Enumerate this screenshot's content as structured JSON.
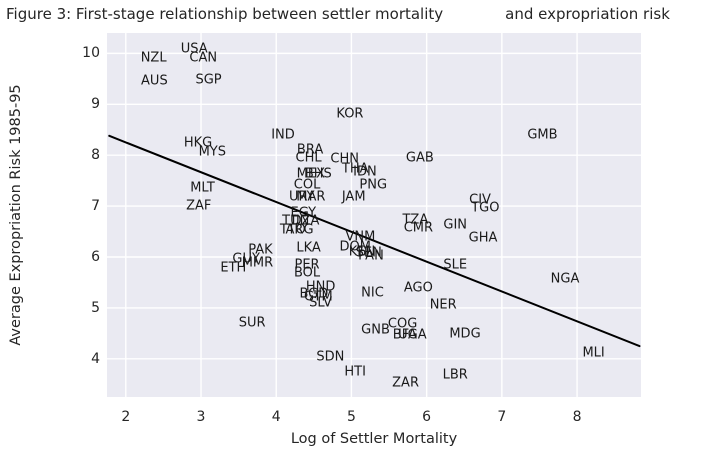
{
  "title": "Figure 3: First-stage relationship between settler mortality             and expropriation risk",
  "chart_data": {
    "type": "scatter",
    "marker_style": "country-code-text-labels",
    "xlabel": "Log of Settler Mortality",
    "ylabel": "Average Expropriation Risk 1985-95",
    "xlim": [
      1.75,
      8.85
    ],
    "ylim": [
      3.25,
      10.4
    ],
    "xticks": [
      2,
      3,
      4,
      5,
      6,
      7,
      8
    ],
    "yticks": [
      4,
      5,
      6,
      7,
      8,
      9,
      10
    ],
    "grid": true,
    "legend": "none",
    "style": {
      "plot_background": "#eaeaf2",
      "grid_color": "#ffffff",
      "figure_background": "#ffffff",
      "text_color": "#262626",
      "point_label_color": "#1a1a1a",
      "line_color": "#000000"
    },
    "regression_line": {
      "x": [
        1.78,
        8.83
      ],
      "y": [
        8.38,
        4.25
      ]
    },
    "points": [
      {
        "label": "USA",
        "x": 2.91,
        "y": 10.08
      },
      {
        "label": "NZL",
        "x": 2.37,
        "y": 9.9
      },
      {
        "label": "CAN",
        "x": 3.03,
        "y": 9.9
      },
      {
        "label": "AUS",
        "x": 2.38,
        "y": 9.45
      },
      {
        "label": "SGP",
        "x": 3.1,
        "y": 9.47
      },
      {
        "label": "KOR",
        "x": 4.98,
        "y": 8.8
      },
      {
        "label": "IND",
        "x": 4.09,
        "y": 8.39
      },
      {
        "label": "HKG",
        "x": 2.96,
        "y": 8.24
      },
      {
        "label": "MYS",
        "x": 3.15,
        "y": 8.06
      },
      {
        "label": "GMB",
        "x": 7.54,
        "y": 8.39
      },
      {
        "label": "BRA",
        "x": 4.45,
        "y": 8.1
      },
      {
        "label": "CHL",
        "x": 4.43,
        "y": 7.94
      },
      {
        "label": "CHN",
        "x": 4.91,
        "y": 7.92
      },
      {
        "label": "GAB",
        "x": 5.91,
        "y": 7.94
      },
      {
        "label": "THA",
        "x": 5.05,
        "y": 7.72
      },
      {
        "label": "IDN",
        "x": 5.18,
        "y": 7.66
      },
      {
        "label": "MEX",
        "x": 4.46,
        "y": 7.64
      },
      {
        "label": "BHS",
        "x": 4.56,
        "y": 7.64
      },
      {
        "label": "COL",
        "x": 4.41,
        "y": 7.41
      },
      {
        "label": "PNG",
        "x": 5.29,
        "y": 7.41
      },
      {
        "label": "MLT",
        "x": 3.02,
        "y": 7.36
      },
      {
        "label": "URY",
        "x": 4.34,
        "y": 7.17
      },
      {
        "label": "MAR",
        "x": 4.46,
        "y": 7.17
      },
      {
        "label": "JAM",
        "x": 5.03,
        "y": 7.17
      },
      {
        "label": "CIV",
        "x": 6.71,
        "y": 7.12
      },
      {
        "label": "ZAF",
        "x": 2.97,
        "y": 7.0
      },
      {
        "label": "TGO",
        "x": 6.78,
        "y": 6.97
      },
      {
        "label": "EGY",
        "x": 4.36,
        "y": 6.86
      },
      {
        "label": "TZA",
        "x": 5.85,
        "y": 6.73
      },
      {
        "label": "TUN",
        "x": 4.26,
        "y": 6.7
      },
      {
        "label": "DZA",
        "x": 4.39,
        "y": 6.7
      },
      {
        "label": "GIN",
        "x": 6.38,
        "y": 6.63
      },
      {
        "label": "CMR",
        "x": 5.89,
        "y": 6.57
      },
      {
        "label": "TTO",
        "x": 4.22,
        "y": 6.54
      },
      {
        "label": "ARG",
        "x": 4.31,
        "y": 6.54
      },
      {
        "label": "VNM",
        "x": 5.12,
        "y": 6.4
      },
      {
        "label": "GHA",
        "x": 6.75,
        "y": 6.37
      },
      {
        "label": "DOM",
        "x": 5.05,
        "y": 6.2
      },
      {
        "label": "LKA",
        "x": 4.43,
        "y": 6.18
      },
      {
        "label": "PAK",
        "x": 3.79,
        "y": 6.14
      },
      {
        "label": "KEN",
        "x": 5.14,
        "y": 6.1
      },
      {
        "label": "SEN",
        "x": 5.23,
        "y": 6.08
      },
      {
        "label": "PAN",
        "x": 5.26,
        "y": 6.02
      },
      {
        "label": "GUY",
        "x": 3.6,
        "y": 5.96
      },
      {
        "label": "MMR",
        "x": 3.75,
        "y": 5.89
      },
      {
        "label": "SLE",
        "x": 6.38,
        "y": 5.84
      },
      {
        "label": "PER",
        "x": 4.41,
        "y": 5.84
      },
      {
        "label": "ETH",
        "x": 3.43,
        "y": 5.78
      },
      {
        "label": "BOL",
        "x": 4.41,
        "y": 5.69
      },
      {
        "label": "NGA",
        "x": 7.84,
        "y": 5.57
      },
      {
        "label": "HND",
        "x": 4.59,
        "y": 5.41
      },
      {
        "label": "AGO",
        "x": 5.89,
        "y": 5.39
      },
      {
        "label": "NIC",
        "x": 5.28,
        "y": 5.29
      },
      {
        "label": "BGD",
        "x": 4.5,
        "y": 5.27
      },
      {
        "label": "GTM",
        "x": 4.56,
        "y": 5.21
      },
      {
        "label": "SLV",
        "x": 4.59,
        "y": 5.09
      },
      {
        "label": "NER",
        "x": 6.22,
        "y": 5.06
      },
      {
        "label": "SUR",
        "x": 3.68,
        "y": 4.71
      },
      {
        "label": "COG",
        "x": 5.68,
        "y": 4.69
      },
      {
        "label": "GNB",
        "x": 5.32,
        "y": 4.57
      },
      {
        "label": "MDG",
        "x": 6.51,
        "y": 4.49
      },
      {
        "label": "BFA",
        "x": 5.71,
        "y": 4.47
      },
      {
        "label": "UGA",
        "x": 5.81,
        "y": 4.47
      },
      {
        "label": "MLI",
        "x": 8.22,
        "y": 4.12
      },
      {
        "label": "SDN",
        "x": 4.72,
        "y": 4.04
      },
      {
        "label": "HTI",
        "x": 5.05,
        "y": 3.74
      },
      {
        "label": "LBR",
        "x": 6.38,
        "y": 3.69
      },
      {
        "label": "ZAR",
        "x": 5.72,
        "y": 3.53
      }
    ]
  }
}
